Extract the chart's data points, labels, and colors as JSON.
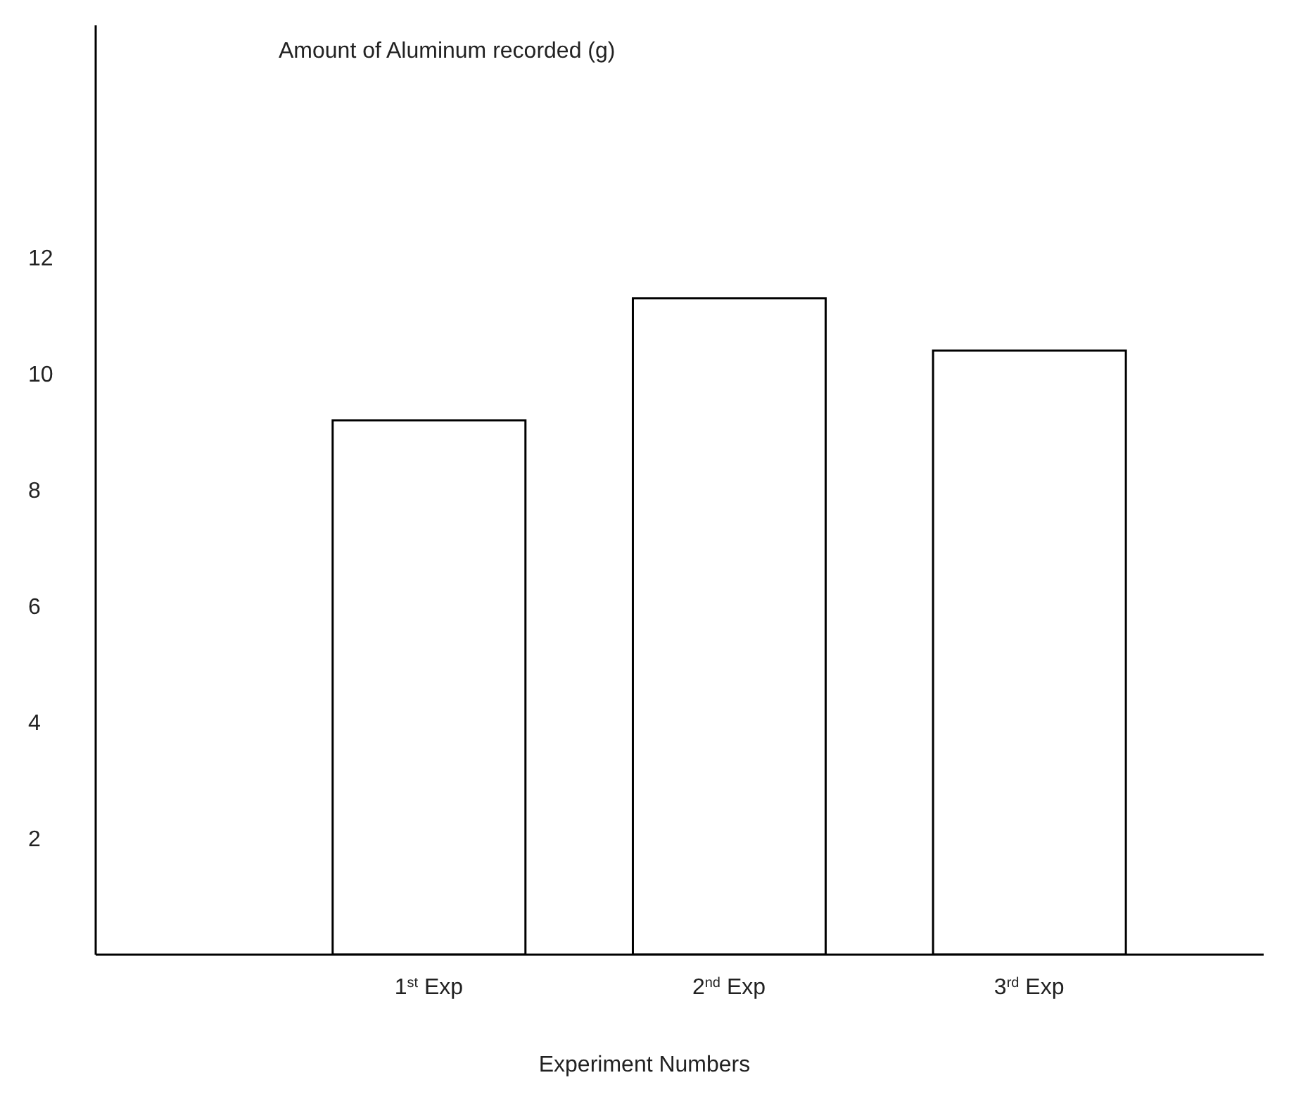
{
  "chart_data": {
    "type": "bar",
    "ylabel": "Amount of Aluminum recorded (g)",
    "xlabel": "Experiment Numbers",
    "categories": [
      "1$^{st}$ Exp",
      "2$^{nd}$ Exp",
      "3$^{rd}$ Exp"
    ],
    "values": [
      9.2,
      11.3,
      10.4
    ],
    "color": "#ffffff",
    "ylim": [
      0,
      16
    ],
    "yticks": [
      2,
      4,
      6,
      8,
      10,
      12
    ],
    "grid": false,
    "legend": false
  }
}
